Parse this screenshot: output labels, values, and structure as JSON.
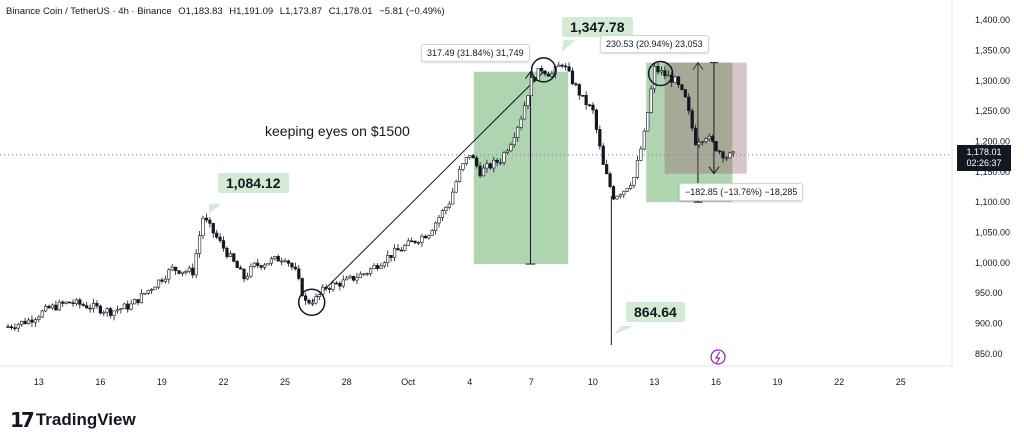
{
  "header": {
    "symbol": "Binance Coin / TetherUS · 4h · Binance",
    "open": "O1,183.83",
    "high": "H1,191.09",
    "low": "L1,173.87",
    "close": "C1,178.01",
    "change": "−5.81 (−0.49%)"
  },
  "brand": {
    "mark": "17",
    "name": "TradingView"
  },
  "annotations": {
    "note": "keeping eyes on $1500",
    "callout_low_high": "1,084.12",
    "callout_peak": "1,347.78",
    "callout_wick": "864.64",
    "measure_1": "317.49 (31.84%) 31,749",
    "measure_2": "230.53 (20.94%) 23,053",
    "measure_3": "−182.85 (−13.76%) −18,285"
  },
  "last_price": {
    "price": "1,178.01",
    "countdown": "02:26:37"
  },
  "colors": {
    "up": "#131722",
    "down": "#131722",
    "measure_up": "#a5cfa6",
    "measure_down": "#c9aeb2",
    "callout": "#d3ebd5"
  },
  "chart_data": {
    "type": "candlestick",
    "title": "Binance Coin / TetherUS · 4h · Binance",
    "y_ticks": [
      "1,400.00",
      "1,350.00",
      "1,300.00",
      "1,250.00",
      "1,200.00",
      "1,150.00",
      "1,100.00",
      "1,050.00",
      "1,000.00",
      "950.00",
      "900.00",
      "850.00"
    ],
    "ylim": [
      830,
      1420
    ],
    "x_ticks": [
      {
        "label": "13",
        "day": 13
      },
      {
        "label": "16",
        "day": 16
      },
      {
        "label": "19",
        "day": 19
      },
      {
        "label": "22",
        "day": 22
      },
      {
        "label": "25",
        "day": 25
      },
      {
        "label": "28",
        "day": 28
      },
      {
        "label": "Oct",
        "day": 31
      },
      {
        "label": "4",
        "day": 34
      },
      {
        "label": "7",
        "day": 37
      },
      {
        "label": "10",
        "day": 40
      },
      {
        "label": "13",
        "day": 43
      },
      {
        "label": "16",
        "day": 46
      },
      {
        "label": "19",
        "day": 49
      },
      {
        "label": "22",
        "day": 52
      },
      {
        "label": "25",
        "day": 55
      }
    ],
    "xlim": [
      11.5,
      57.5
    ],
    "key_levels": [
      {
        "day": 21,
        "price": 1084.12
      },
      {
        "day": 26.3,
        "price": 935
      },
      {
        "day": 37.6,
        "price": 1347.78
      },
      {
        "day": 40.9,
        "price": 864.64
      },
      {
        "day": 43.5,
        "price": 1347.78
      }
    ],
    "price_path": [
      [
        11.5,
        895
      ],
      [
        12.5,
        905
      ],
      [
        13.5,
        925
      ],
      [
        14.5,
        935
      ],
      [
        15.5,
        928
      ],
      [
        16.5,
        920
      ],
      [
        17.5,
        930
      ],
      [
        18.5,
        960
      ],
      [
        19.5,
        990
      ],
      [
        20.5,
        985
      ],
      [
        21.0,
        1075
      ],
      [
        21.5,
        1050
      ],
      [
        22.5,
        1000
      ],
      [
        23.0,
        975
      ],
      [
        23.5,
        995
      ],
      [
        24.5,
        1005
      ],
      [
        25.0,
        1010
      ],
      [
        25.5,
        985
      ],
      [
        26.0,
        935
      ],
      [
        26.5,
        940
      ],
      [
        27.0,
        960
      ],
      [
        28.0,
        970
      ],
      [
        29.0,
        985
      ],
      [
        30.0,
        1010
      ],
      [
        31.0,
        1030
      ],
      [
        32.0,
        1050
      ],
      [
        33.0,
        1100
      ],
      [
        33.5,
        1150
      ],
      [
        34.0,
        1180
      ],
      [
        34.5,
        1150
      ],
      [
        35.0,
        1160
      ],
      [
        35.5,
        1170
      ],
      [
        36.0,
        1200
      ],
      [
        36.5,
        1240
      ],
      [
        37.0,
        1300
      ],
      [
        37.5,
        1320
      ],
      [
        38.0,
        1310
      ],
      [
        38.5,
        1330
      ],
      [
        39.0,
        1300
      ],
      [
        39.5,
        1270
      ],
      [
        40.0,
        1250
      ],
      [
        40.5,
        1160
      ],
      [
        41.0,
        1110
      ],
      [
        41.5,
        1120
      ],
      [
        42.0,
        1140
      ],
      [
        42.5,
        1210
      ],
      [
        43.0,
        1320
      ],
      [
        43.5,
        1310
      ],
      [
        44.0,
        1300
      ],
      [
        44.5,
        1270
      ],
      [
        45.0,
        1200
      ],
      [
        45.5,
        1210
      ],
      [
        46.0,
        1190
      ],
      [
        46.5,
        1175
      ],
      [
        47.0,
        1178
      ]
    ],
    "measure_boxes": [
      {
        "d0": 34.2,
        "d1": 38.8,
        "p0": 998,
        "p1": 1315,
        "label": "317.49 (31.84%) 31,749",
        "kind": "up"
      },
      {
        "d0": 42.6,
        "d1": 46.8,
        "p0": 1100,
        "p1": 1330,
        "label": "230.53 (20.94%) 23,053",
        "kind": "up"
      },
      {
        "d0": 43.5,
        "d1": 47.5,
        "p0": 1330,
        "p1": 1147,
        "label": "−182.85 (−13.76%) −18,285",
        "kind": "down"
      }
    ],
    "trendline": [
      [
        26.3,
        935
      ],
      [
        37.6,
        1315
      ]
    ]
  }
}
